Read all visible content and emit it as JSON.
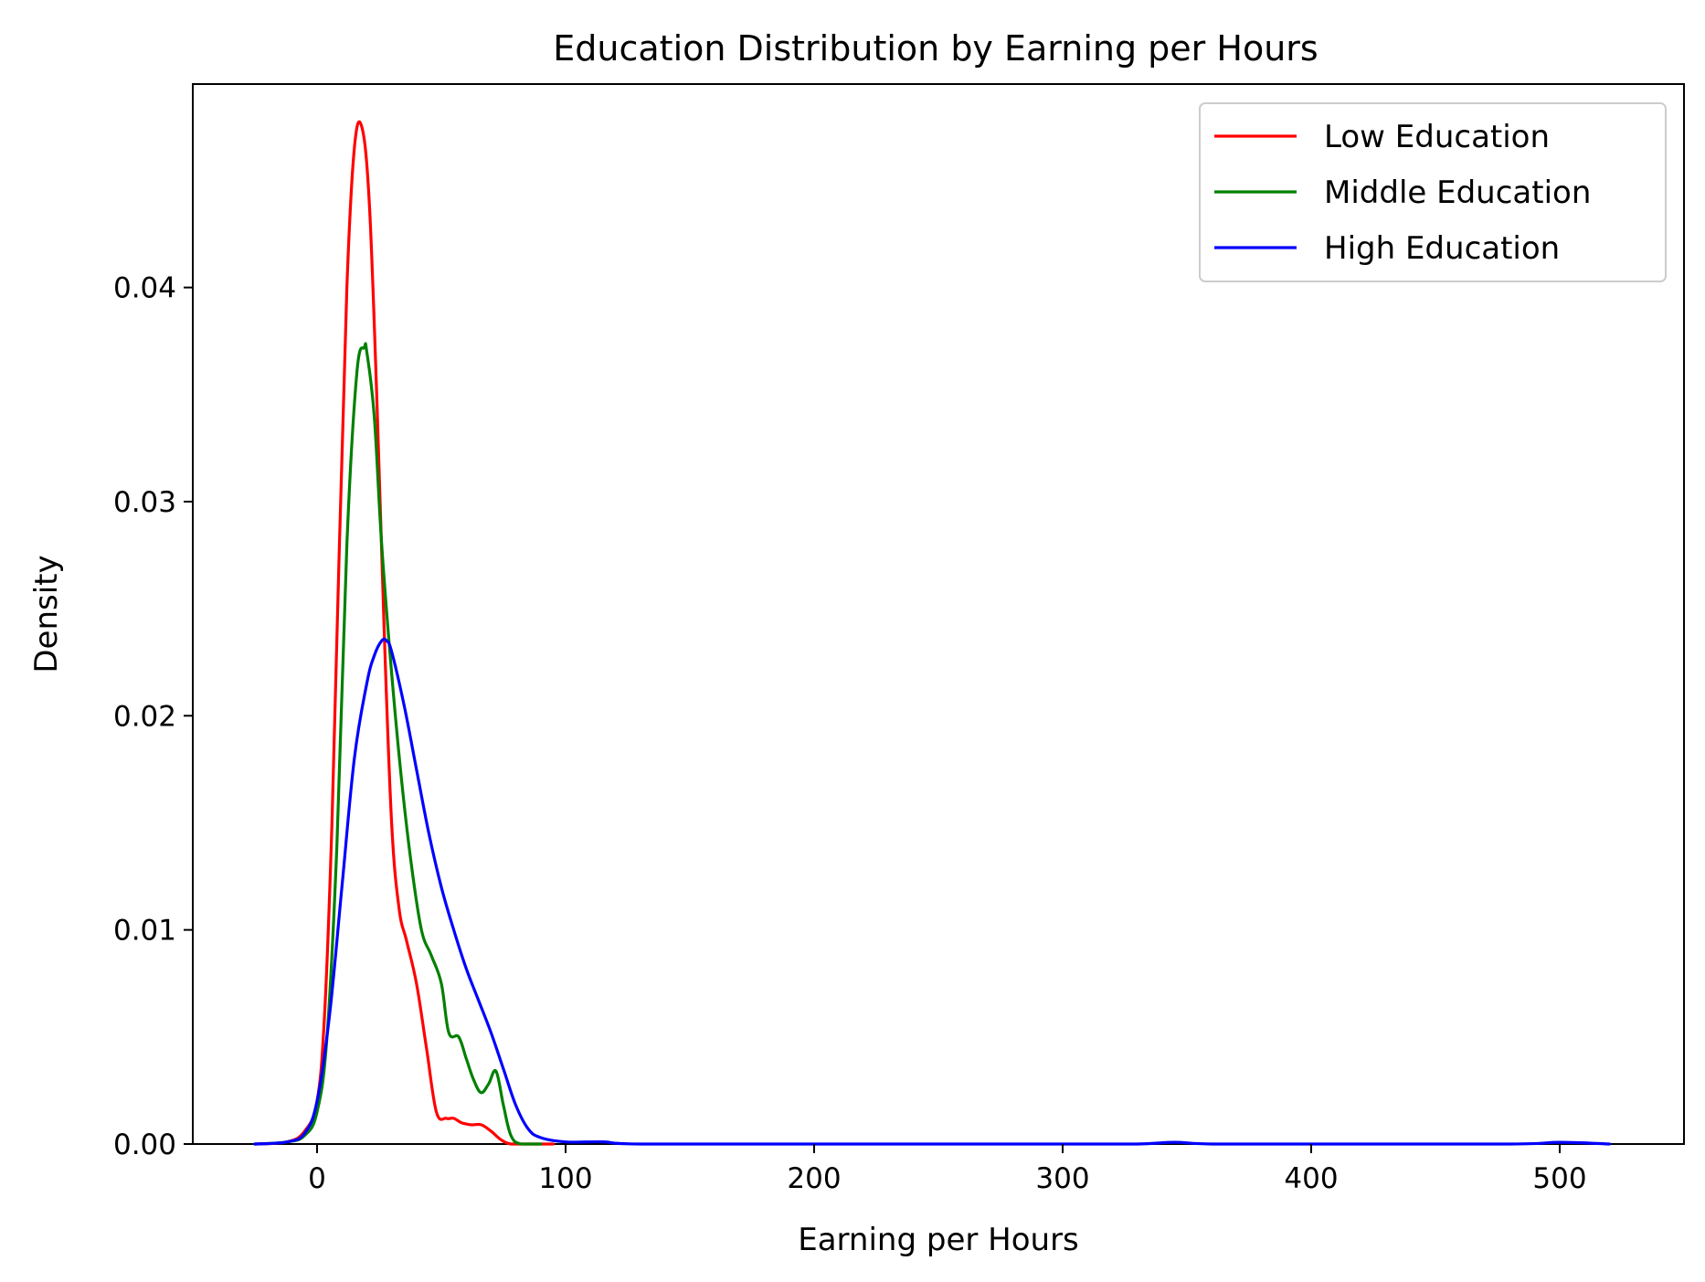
{
  "chart_data": {
    "type": "line",
    "title": "Education Distribution by Earning per Hours",
    "xlabel": "Earning per Hours",
    "ylabel": "Density",
    "xlim": [
      -50,
      550
    ],
    "ylim": [
      0,
      0.0495
    ],
    "xticks": [
      0,
      100,
      200,
      300,
      400,
      500
    ],
    "yticks": [
      0.0,
      0.01,
      0.02,
      0.03,
      0.04
    ],
    "xtick_labels": [
      "0",
      "100",
      "200",
      "300",
      "400",
      "500"
    ],
    "ytick_labels": [
      "0.00",
      "0.01",
      "0.02",
      "0.03",
      "0.04"
    ],
    "grid": false,
    "legend_position": "top-right",
    "series": [
      {
        "name": "Low Education",
        "color": "#ff0000",
        "x": [
          -25,
          -12,
          -5,
          0,
          3,
          6,
          9,
          12,
          15,
          18,
          21,
          24,
          27,
          30,
          33,
          36,
          40,
          44,
          48,
          52,
          55,
          58,
          62,
          66,
          70,
          74,
          78,
          85,
          95
        ],
        "y": [
          0.0,
          0.0001,
          0.0006,
          0.002,
          0.006,
          0.015,
          0.028,
          0.04,
          0.0465,
          0.0475,
          0.044,
          0.035,
          0.024,
          0.015,
          0.011,
          0.0095,
          0.0075,
          0.0045,
          0.0015,
          0.0012,
          0.0012,
          0.001,
          0.0009,
          0.0009,
          0.0006,
          0.0002,
          0.0,
          0.0,
          0.0
        ]
      },
      {
        "name": "Middle Education",
        "color": "#008000",
        "x": [
          -25,
          -12,
          -5,
          0,
          4,
          8,
          12,
          16,
          19,
          20,
          23,
          26,
          30,
          34,
          38,
          42,
          46,
          50,
          53,
          57,
          60,
          63,
          66,
          69,
          72,
          75,
          78,
          82,
          90
        ],
        "y": [
          0.0,
          0.0001,
          0.0004,
          0.0015,
          0.005,
          0.014,
          0.028,
          0.036,
          0.0372,
          0.037,
          0.034,
          0.028,
          0.022,
          0.017,
          0.013,
          0.01,
          0.0088,
          0.0075,
          0.0052,
          0.005,
          0.004,
          0.003,
          0.0024,
          0.0028,
          0.0034,
          0.0018,
          0.0004,
          0.0,
          0.0
        ]
      },
      {
        "name": "High Education",
        "color": "#0000ff",
        "x": [
          -25,
          -12,
          -5,
          0,
          5,
          10,
          15,
          20,
          23,
          26,
          28,
          30,
          35,
          40,
          45,
          50,
          55,
          60,
          65,
          70,
          75,
          80,
          85,
          90,
          100,
          115,
          130,
          200,
          300,
          330,
          345,
          360,
          400,
          480,
          500,
          520
        ],
        "y": [
          0.0,
          0.0001,
          0.0005,
          0.002,
          0.006,
          0.012,
          0.018,
          0.0215,
          0.0228,
          0.0235,
          0.0235,
          0.023,
          0.0205,
          0.0175,
          0.0145,
          0.012,
          0.01,
          0.0082,
          0.0067,
          0.0052,
          0.0035,
          0.0018,
          0.0007,
          0.0003,
          0.0001,
          0.0001,
          0.0,
          0.0,
          0.0,
          0.0,
          8e-05,
          0.0,
          0.0,
          0.0,
          8e-05,
          0.0
        ]
      }
    ]
  }
}
